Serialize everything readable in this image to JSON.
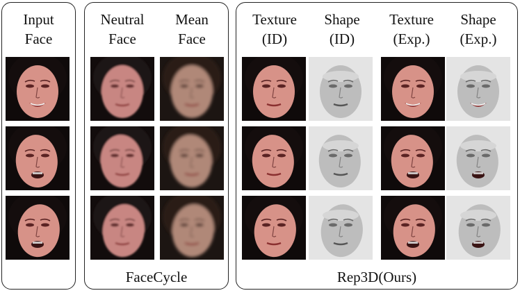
{
  "panels": {
    "input": {
      "columns": [
        {
          "header": "Input\nFace"
        }
      ]
    },
    "facecycle": {
      "caption": "FaceCycle",
      "columns": [
        {
          "header": "Neutral\nFace"
        },
        {
          "header": "Mean\nFace"
        }
      ]
    },
    "rep3d": {
      "caption": "Rep3D(Ours)",
      "columns": [
        {
          "header": "Texture\n(ID)"
        },
        {
          "header": "Shape\n(ID)"
        },
        {
          "header": "Texture\n(Exp.)"
        },
        {
          "header": "Shape\n(Exp.)"
        }
      ]
    }
  },
  "rows": 3,
  "cells": [
    [
      "input-face",
      "neutral-face",
      "mean-face",
      "texture-id",
      "shape-id",
      "texture-exp",
      "shape-exp"
    ],
    [
      "input-face",
      "neutral-face",
      "mean-face",
      "texture-id",
      "shape-id",
      "texture-exp",
      "shape-exp"
    ],
    [
      "input-face",
      "neutral-face",
      "mean-face",
      "texture-id",
      "shape-id",
      "texture-exp",
      "shape-exp"
    ]
  ]
}
